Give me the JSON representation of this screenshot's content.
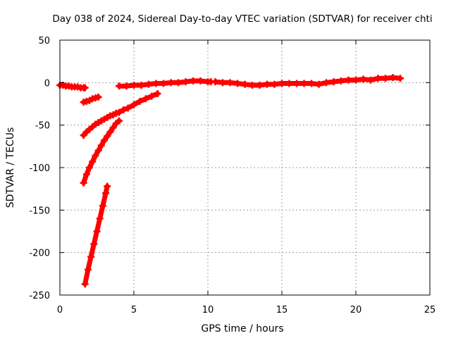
{
  "chart_data": {
    "type": "scatter",
    "title": "Day 038 of 2024, Sidereal Day-to-day VTEC variation (SDTVAR) for receiver chti",
    "xlabel": "GPS time / hours",
    "ylabel": "SDTVAR / TECUs",
    "xlim": [
      0,
      25
    ],
    "ylim": [
      -250,
      50
    ],
    "xticks": [
      0,
      5,
      10,
      15,
      20,
      25
    ],
    "yticks": [
      -250,
      -200,
      -150,
      -100,
      -50,
      0,
      50
    ],
    "grid": true,
    "legend": "none",
    "color": "#ff0000",
    "marker": "plus",
    "series": [
      {
        "x": [
          0.0,
          0.2,
          0.4,
          0.6,
          0.8,
          1.0,
          1.2,
          1.4,
          1.6,
          1.7
        ],
        "y": [
          -3,
          -3,
          -4,
          -4,
          -5,
          -5,
          -5,
          -6,
          -6,
          -6
        ]
      },
      {
        "x": [
          1.6,
          1.8,
          2.0,
          2.2,
          2.4,
          2.6
        ],
        "y": [
          -23,
          -22,
          -21,
          -19,
          -18,
          -17
        ]
      },
      {
        "x": [
          1.6,
          1.8,
          2.0,
          2.2,
          2.4,
          2.6,
          2.8,
          3.0,
          3.2,
          3.4,
          3.6,
          3.8,
          4.0,
          4.3,
          4.6,
          5.0,
          5.4,
          5.8,
          6.2,
          6.6
        ],
        "y": [
          -62,
          -58,
          -55,
          -52,
          -49,
          -47,
          -45,
          -43,
          -41,
          -39,
          -38,
          -36,
          -35,
          -32,
          -30,
          -26,
          -22,
          -19,
          -16,
          -13
        ]
      },
      {
        "x": [
          1.6,
          1.8,
          2.0,
          2.2,
          2.4,
          2.6,
          2.8,
          3.0,
          3.2,
          3.4,
          3.6,
          3.8,
          4.0
        ],
        "y": [
          -118,
          -108,
          -100,
          -93,
          -86,
          -80,
          -74,
          -68,
          -63,
          -58,
          -53,
          -48,
          -45
        ]
      },
      {
        "x": [
          1.7,
          1.9,
          2.1,
          2.3,
          2.5,
          2.7,
          2.9,
          3.1,
          3.2
        ],
        "y": [
          -237,
          -220,
          -205,
          -190,
          -175,
          -160,
          -145,
          -130,
          -122
        ]
      },
      {
        "x": [
          4.0,
          4.5,
          5.0,
          5.5,
          6.0,
          6.5,
          7.0,
          7.5,
          8.0,
          8.5,
          9.0,
          9.5,
          10.0,
          10.2
        ],
        "y": [
          -4,
          -4,
          -3,
          -3,
          -2,
          -1,
          -1,
          0,
          0,
          1,
          2,
          2,
          1,
          1
        ]
      },
      {
        "x": [
          10.5,
          11.0,
          11.5,
          12.0,
          12.5,
          13.0,
          13.5,
          14.0,
          14.5,
          15.0,
          15.5,
          16.0,
          16.5,
          17.0,
          17.5,
          18.0,
          18.5,
          19.0,
          19.5,
          20.0,
          20.5,
          21.0,
          21.5,
          22.0,
          22.5,
          23.0
        ],
        "y": [
          1,
          0,
          0,
          -1,
          -2,
          -3,
          -3,
          -2,
          -2,
          -1,
          -1,
          -1,
          -1,
          -1,
          -2,
          0,
          1,
          2,
          3,
          3,
          4,
          3,
          5,
          5,
          6,
          5
        ]
      }
    ]
  }
}
